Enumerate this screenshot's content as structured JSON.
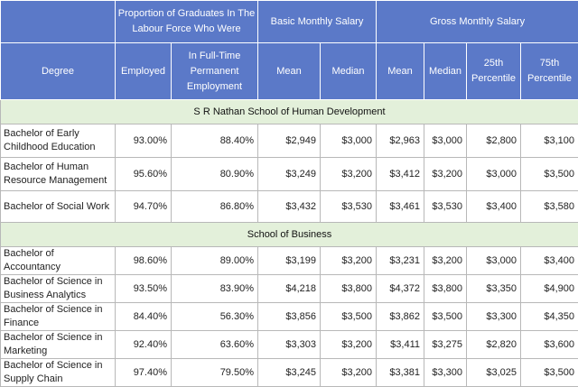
{
  "header": {
    "group1": "Proportion of Graduates In The Labour Force Who Were",
    "group2": "Basic Monthly Salary",
    "group3": "Gross Monthly Salary",
    "cols": [
      "Degree",
      "Employed",
      "In Full-Time Permanent Employment",
      "Mean",
      "Median",
      "Mean",
      "Median",
      "25th Percentile",
      "75th Percentile"
    ]
  },
  "sections": [
    {
      "title": "S R Nathan School of Human Development",
      "rows": [
        {
          "degree": "Bachelor of Early Childhood Education",
          "values": [
            "93.00%",
            "88.40%",
            "$2,949",
            "$3,000",
            "$2,963",
            "$3,000",
            "$2,800",
            "$3,100"
          ]
        },
        {
          "degree": "Bachelor of Human Resource Management",
          "values": [
            "95.60%",
            "80.90%",
            "$3,249",
            "$3,200",
            "$3,412",
            "$3,200",
            "$3,000",
            "$3,500"
          ]
        },
        {
          "degree": "Bachelor of Social Work",
          "values": [
            "94.70%",
            "86.80%",
            "$3,432",
            "$3,530",
            "$3,461",
            "$3,530",
            "$3,400",
            "$3,580"
          ]
        }
      ]
    },
    {
      "title": "School of Business",
      "rows": [
        {
          "degree": "Bachelor of Accountancy",
          "values": [
            "98.60%",
            "89.00%",
            "$3,199",
            "$3,200",
            "$3,231",
            "$3,200",
            "$3,000",
            "$3,400"
          ]
        },
        {
          "degree": "Bachelor of Science in Business Analytics",
          "values": [
            "93.50%",
            "83.90%",
            "$4,218",
            "$3,800",
            "$4,372",
            "$3,800",
            "$3,350",
            "$4,900"
          ]
        },
        {
          "degree": "Bachelor of Science in Finance",
          "values": [
            "84.40%",
            "56.30%",
            "$3,856",
            "$3,500",
            "$3,862",
            "$3,500",
            "$3,300",
            "$4,350"
          ]
        },
        {
          "degree": "Bachelor of Science in Marketing",
          "values": [
            "92.40%",
            "63.60%",
            "$3,303",
            "$3,200",
            "$3,411",
            "$3,275",
            "$2,820",
            "$3,600"
          ]
        },
        {
          "degree": "Bachelor of Science in Supply Chain",
          "values": [
            "97.40%",
            "79.50%",
            "$3,245",
            "$3,200",
            "$3,381",
            "$3,300",
            "$3,025",
            "$3,500"
          ]
        }
      ]
    }
  ]
}
